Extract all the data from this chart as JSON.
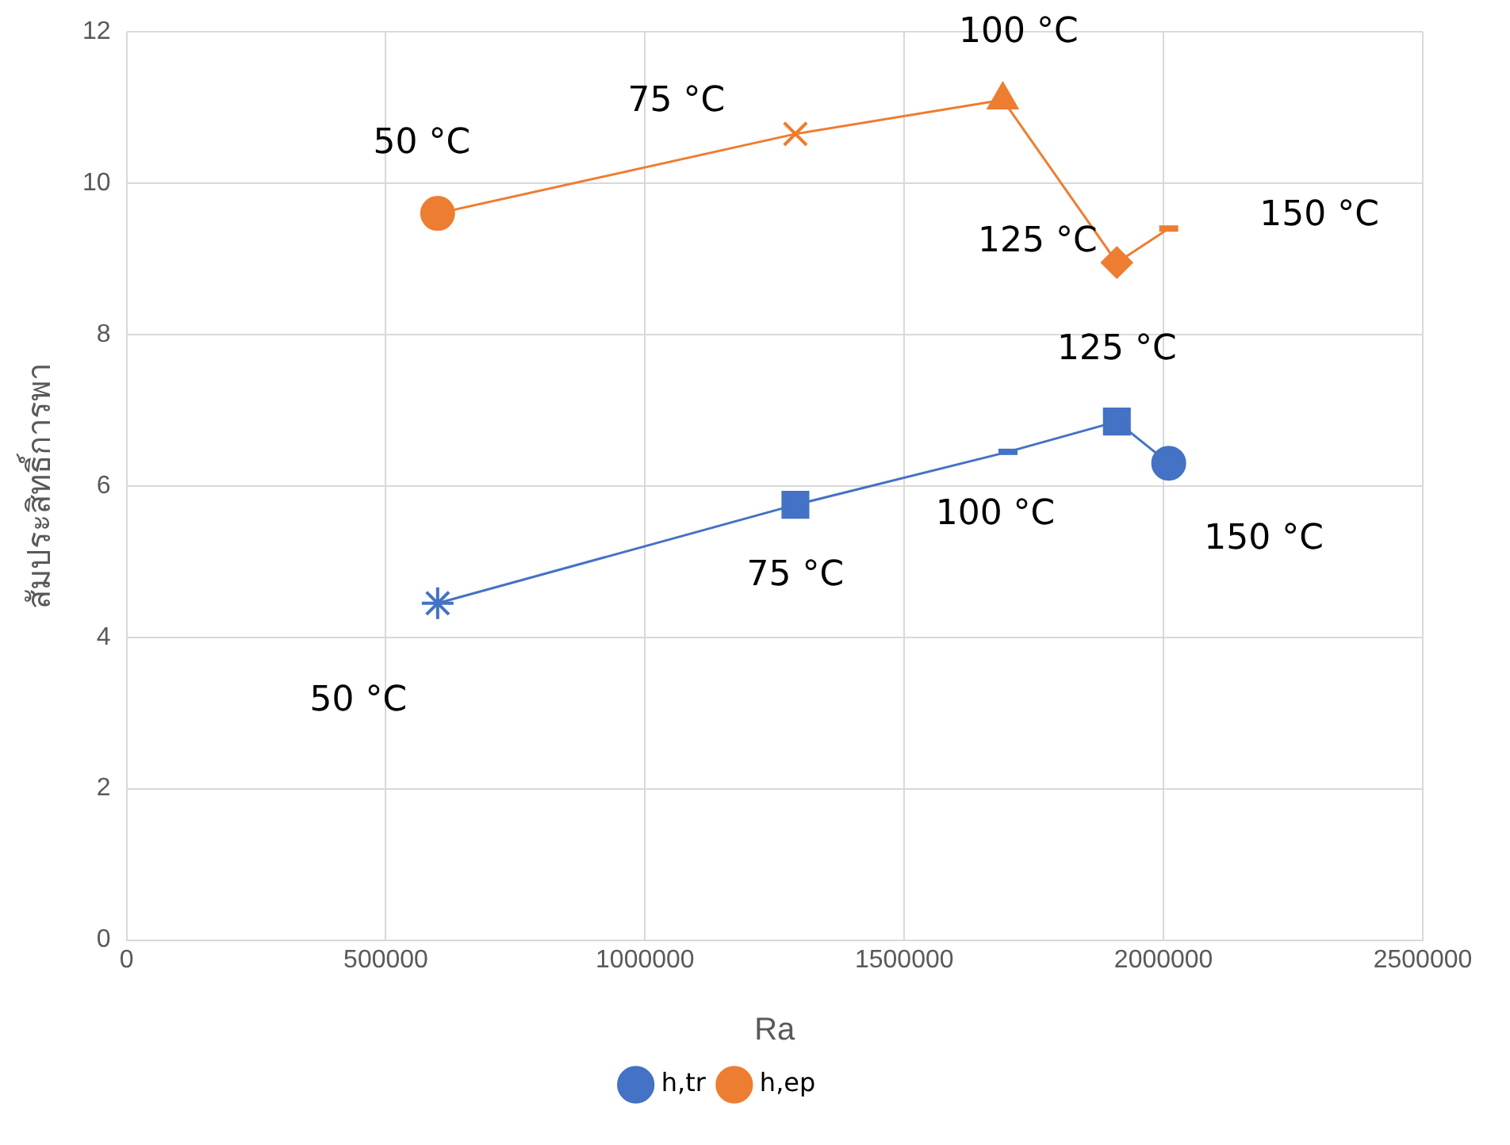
{
  "chart_data": {
    "type": "line",
    "xlabel": "Ra",
    "ylabel": "สัมประสิทธิ์การพา",
    "xlim": [
      0,
      2500000
    ],
    "xticks": [
      0,
      500000,
      1000000,
      1500000,
      2000000,
      2500000
    ],
    "ylim": [
      0,
      12
    ],
    "yticks": [
      0,
      2,
      4,
      6,
      8,
      10,
      12
    ],
    "grid": true,
    "legend": "bottom",
    "series": [
      {
        "name": "h,tr",
        "color": "#4472c4",
        "x": [
          600000,
          1290000,
          1700000,
          1910000,
          2010000
        ],
        "values": [
          4.45,
          5.75,
          6.45,
          6.85,
          6.3
        ],
        "marker": [
          "star",
          "square",
          "dash",
          "square",
          "circle"
        ]
      },
      {
        "name": "h,ep",
        "color": "#ed7d31",
        "x": [
          600000,
          1290000,
          1690000,
          1910000,
          2010000
        ],
        "values": [
          9.6,
          10.65,
          11.1,
          8.95,
          9.4
        ],
        "marker": [
          "circle",
          "cross",
          "triangle",
          "diamond",
          "dash"
        ]
      }
    ],
    "annotations": [
      {
        "text": "50 °C",
        "x": 600000,
        "y": 9.6
      },
      {
        "text": "75 °C",
        "x": 1290000,
        "y": 10.65
      },
      {
        "text": "100 °C",
        "x": 1690000,
        "y": 11.1
      },
      {
        "text": "125 °C",
        "x": 1910000,
        "y": 8.95
      },
      {
        "text": "150 °C",
        "x": 2010000,
        "y": 9.4
      },
      {
        "text": "125 °C",
        "x": 1910000,
        "y": 6.85
      },
      {
        "text": "100 °C",
        "x": 1700000,
        "y": 6.45
      },
      {
        "text": "75 °C",
        "x": 1290000,
        "y": 5.75
      },
      {
        "text": "150 °C",
        "x": 2010000,
        "y": 6.3
      },
      {
        "text": "50 °C",
        "x": 600000,
        "y": 4.45
      }
    ]
  }
}
